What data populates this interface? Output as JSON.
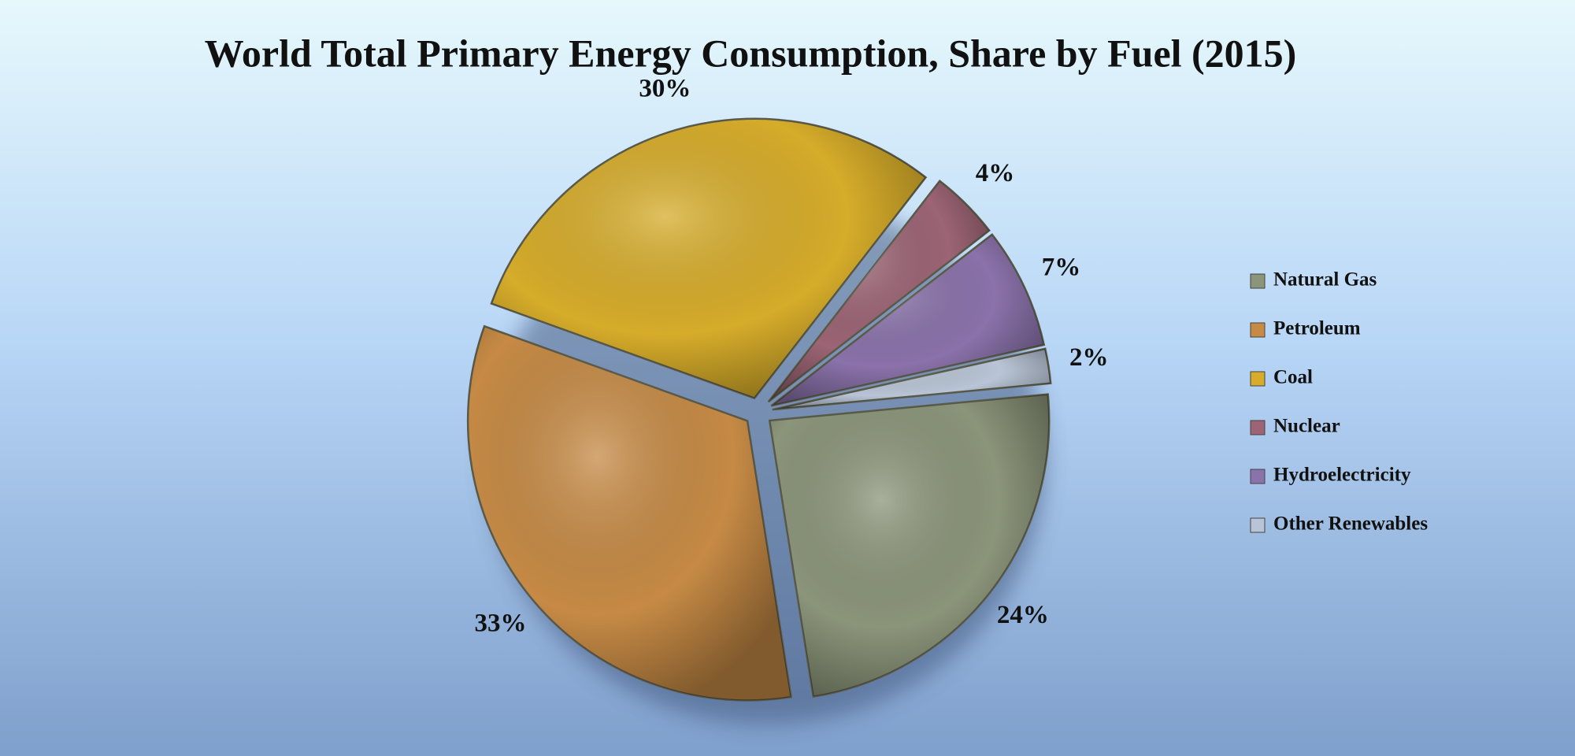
{
  "chart_data": {
    "type": "pie",
    "title": "World Total Primary Energy Consumption, Share by Fuel (2015)",
    "categories": [
      "Natural Gas",
      "Petroleum",
      "Coal",
      "Nuclear",
      "Hydroelectricity",
      "Other Renewables"
    ],
    "values": [
      24,
      33,
      30,
      4,
      7,
      2
    ],
    "value_labels": [
      "24%",
      "33%",
      "30%",
      "4%",
      "7%",
      "2%"
    ],
    "colors": [
      "#8b957a",
      "#c68a45",
      "#d6ac2a",
      "#9c6474",
      "#8a72aa",
      "#b9c5d6"
    ],
    "legend": "right"
  }
}
